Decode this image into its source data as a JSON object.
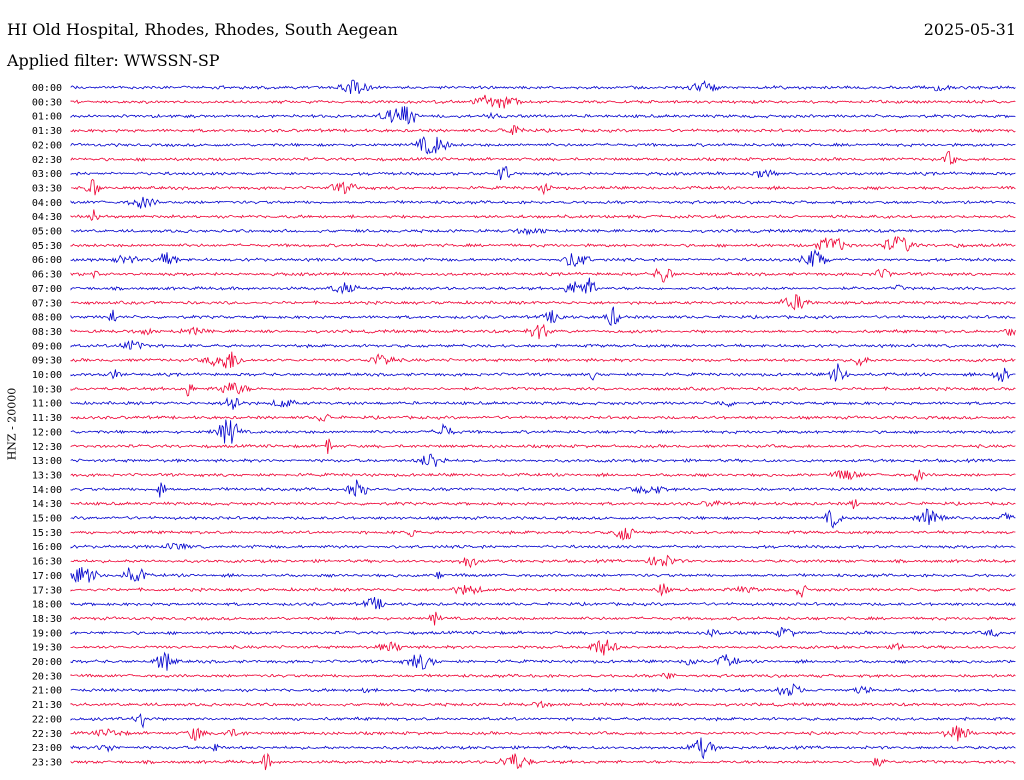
{
  "header": {
    "station": "HI Old Hospital, Rhodes, Rhodes, South Aegean",
    "date": "2025-05-31",
    "filter": "Applied filter: WWSSN-SP",
    "channel": "HNZ - 20000"
  },
  "chart_data": {
    "type": "line",
    "title": "HI Old Hospital, Rhodes, Rhodes, South Aegean",
    "ylabel": "HNZ - 20000",
    "colors": [
      "#0000cc",
      "#ee0033"
    ],
    "rows": [
      "00:00",
      "00:30",
      "01:00",
      "01:30",
      "02:00",
      "02:30",
      "03:00",
      "03:30",
      "04:00",
      "04:30",
      "05:00",
      "05:30",
      "06:00",
      "06:30",
      "07:00",
      "07:30",
      "08:00",
      "08:30",
      "09:00",
      "09:30",
      "10:00",
      "10:30",
      "11:00",
      "11:30",
      "12:00",
      "12:30",
      "13:00",
      "13:30",
      "14:00",
      "14:30",
      "15:00",
      "15:30",
      "16:00",
      "16:30",
      "17:00",
      "17:30",
      "18:00",
      "18:30",
      "19:00",
      "19:30",
      "20:00",
      "20:30",
      "21:00",
      "21:30",
      "22:00",
      "22:30",
      "23:00",
      "23:30"
    ]
  }
}
